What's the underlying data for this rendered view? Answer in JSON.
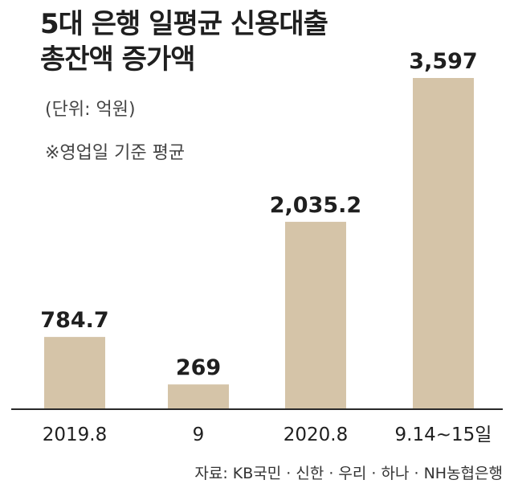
{
  "chart_data": {
    "type": "bar",
    "title_lines": [
      "5대 은행 일평균 신용대출",
      "총잔액 증가액"
    ],
    "unit_note": "(단위: 억원)",
    "note": "※영업일 기준 평균",
    "categories": [
      "2019.8",
      "9",
      "2020.8",
      "9.14~15일"
    ],
    "values": [
      784.7,
      269,
      2035.2,
      3597
    ],
    "value_labels": [
      "784.7",
      "269",
      "2,035.2",
      "3,597"
    ],
    "bar_color": "#d5c4a8",
    "axis_color": "#2a2a2a",
    "source": "자료: KB국민 · 신한 · 우리 · 하나 · NH농협은행",
    "grid": false,
    "legend": "none"
  }
}
